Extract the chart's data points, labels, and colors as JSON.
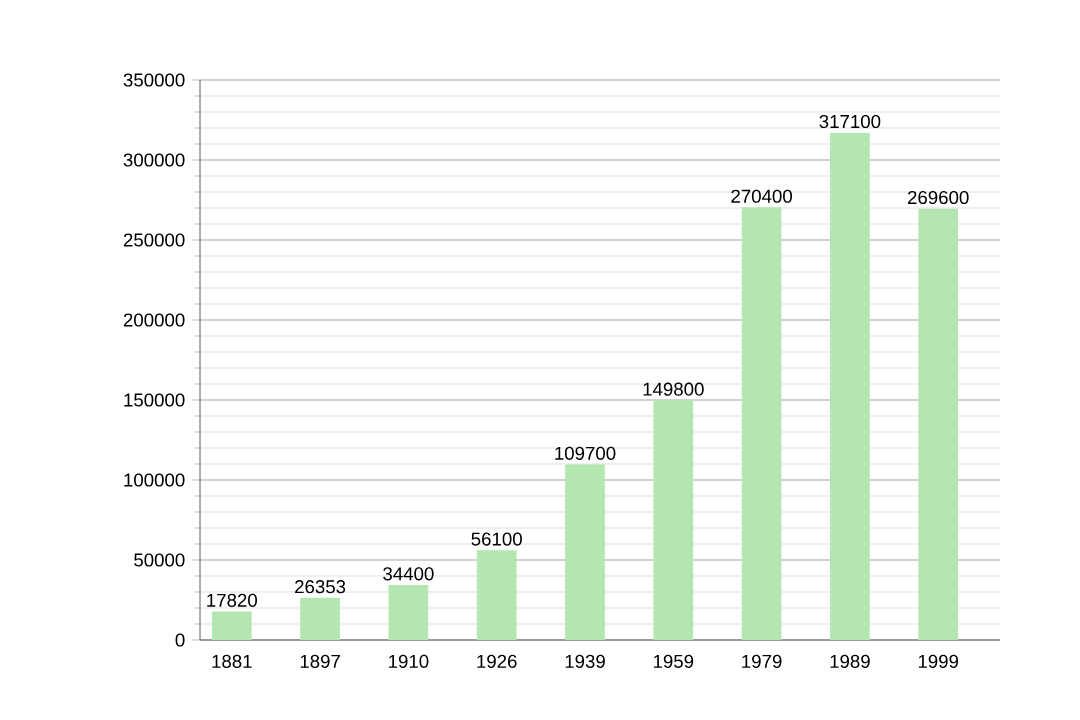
{
  "chart_data": {
    "type": "bar",
    "categories": [
      "1881",
      "1897",
      "1910",
      "1926",
      "1939",
      "1959",
      "1979",
      "1989",
      "1999"
    ],
    "values": [
      17820,
      26353,
      34400,
      56100,
      109700,
      149800,
      270400,
      317100,
      269600
    ],
    "color": "#b3e6b0",
    "ylim": [
      0,
      350000
    ],
    "yticks": [
      0,
      50000,
      100000,
      150000,
      200000,
      250000,
      300000,
      350000
    ],
    "grid": "y",
    "data_labels": true
  }
}
